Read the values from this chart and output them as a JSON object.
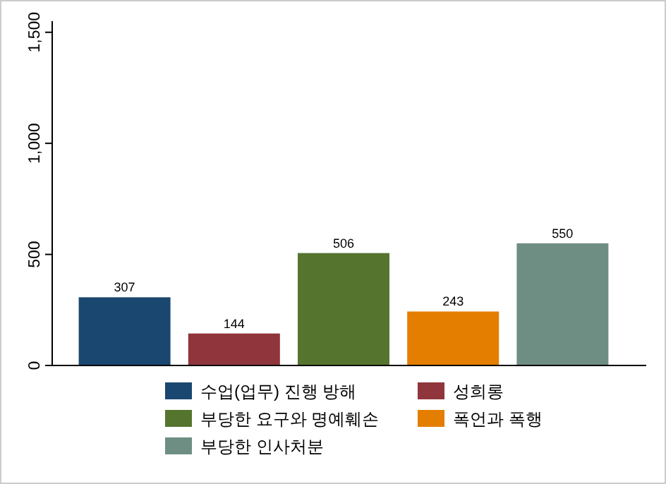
{
  "chart_data": {
    "type": "bar",
    "categories": [
      null
    ],
    "series": [
      {
        "name": "수업(업무) 진행 방해",
        "color": "#1a476f",
        "values": [
          307
        ]
      },
      {
        "name": "성희롱",
        "color": "#90353b",
        "values": [
          144
        ]
      },
      {
        "name": "부당한 요구와 명예훼손",
        "color": "#55752f",
        "values": [
          506
        ]
      },
      {
        "name": "폭언과 폭행",
        "color": "#e37e00",
        "values": [
          243
        ]
      },
      {
        "name": "부당한 인사처분",
        "color": "#6e8e84",
        "values": [
          550
        ]
      }
    ],
    "ylim": [
      0,
      1550
    ],
    "yticks": [
      0,
      500,
      {
        "value": 1000,
        "label": "1,000"
      },
      {
        "value": 1500,
        "label": "1,500"
      }
    ],
    "data_labels": true,
    "grid": false,
    "legend": "bottom"
  }
}
